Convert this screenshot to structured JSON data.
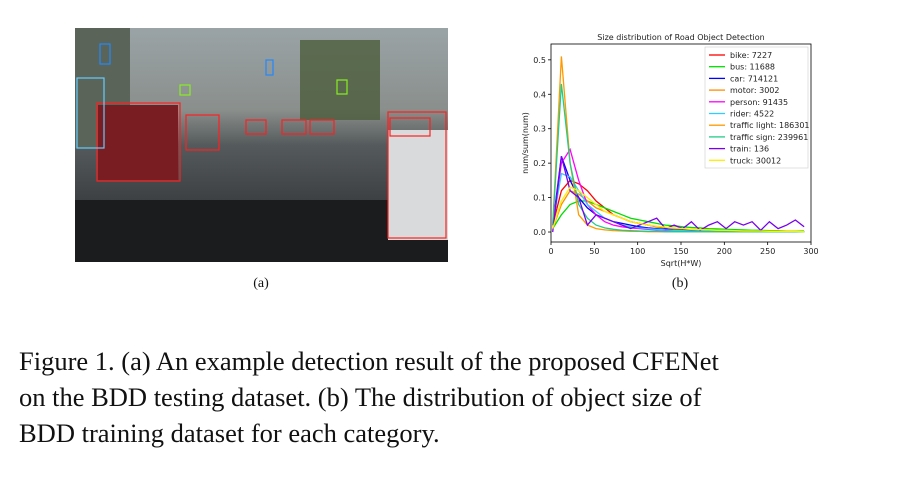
{
  "figure": {
    "panel_a_label": "(a)",
    "panel_b_label": "(b)",
    "caption": {
      "lines": [
        "Figure 1. (a) An example detection result of the proposed CFENet",
        "on the BDD testing dataset.  (b) The distribution of object size of",
        "BDD training dataset for each category."
      ]
    }
  },
  "chart_data": {
    "type": "line",
    "title": "Size distribution of Road Object Detection",
    "x_label": "Sqrt(H*W)",
    "y_label": "num/sum(num)",
    "xlim": [
      0,
      300
    ],
    "ylim": [
      -0.029,
      0.546
    ],
    "xticks": [
      0,
      50,
      100,
      150,
      200,
      250,
      300
    ],
    "yticks": [
      {
        "value": 0,
        "label": "0.0"
      },
      0.1,
      0.2,
      0.3,
      0.4,
      0.5
    ],
    "legend": "upper right",
    "x": [
      2,
      12,
      22,
      32,
      42,
      52,
      62,
      72,
      82,
      92,
      102,
      112,
      122,
      132,
      142,
      152,
      162,
      172,
      182,
      192,
      202,
      212,
      222,
      232,
      242,
      252,
      262,
      272,
      282,
      292
    ],
    "series": [
      {
        "name": "bike: 7227",
        "color": "#ff0000",
        "values": [
          0.02,
          0.12,
          0.15,
          0.14,
          0.12,
          0.09,
          0.07,
          0.05,
          0.04,
          0.03,
          0.025,
          0.02,
          0.015,
          0.012,
          0.01,
          0.008,
          0.007,
          0.006,
          0.005,
          0.004,
          0.004,
          0.003,
          0.003,
          0.002,
          0.002,
          0.002,
          0.002,
          0.001,
          0.001,
          0.001
        ]
      },
      {
        "name": "bus: 11688",
        "color": "#00dd00",
        "values": [
          0.01,
          0.05,
          0.08,
          0.09,
          0.09,
          0.08,
          0.07,
          0.06,
          0.05,
          0.04,
          0.035,
          0.03,
          0.025,
          0.02,
          0.018,
          0.015,
          0.013,
          0.012,
          0.01,
          0.009,
          0.008,
          0.007,
          0.006,
          0.005,
          0.005,
          0.004,
          0.004,
          0.003,
          0.003,
          0.003
        ]
      },
      {
        "name": "car: 714121",
        "color": "#0000ff",
        "values": [
          0.02,
          0.22,
          0.15,
          0.1,
          0.07,
          0.05,
          0.04,
          0.03,
          0.025,
          0.02,
          0.015,
          0.012,
          0.01,
          0.008,
          0.007,
          0.006,
          0.005,
          0.004,
          0.004,
          0.003,
          0.003,
          0.002,
          0.002,
          0.002,
          0.002,
          0.001,
          0.001,
          0.001,
          0.001,
          0.001
        ]
      },
      {
        "name": "motor: 3002",
        "color": "#ff8c00",
        "values": [
          0.01,
          0.08,
          0.12,
          0.11,
          0.09,
          0.07,
          0.06,
          0.05,
          0.04,
          0.03,
          0.025,
          0.02,
          0.016,
          0.013,
          0.01,
          0.009,
          0.008,
          0.007,
          0.006,
          0.005,
          0.004,
          0.004,
          0.003,
          0.003,
          0.002,
          0.002,
          0.002,
          0.002,
          0.001,
          0.001
        ]
      },
      {
        "name": "person: 91435",
        "color": "#ff00ff",
        "values": [
          0.02,
          0.2,
          0.24,
          0.15,
          0.08,
          0.05,
          0.03,
          0.02,
          0.015,
          0.012,
          0.01,
          0.008,
          0.006,
          0.005,
          0.004,
          0.003,
          0.003,
          0.002,
          0.002,
          0.002,
          0.001,
          0.001,
          0.001,
          0.001,
          0.001,
          0.001,
          0.001,
          0.001,
          0.001,
          0.001
        ]
      },
      {
        "name": "rider: 4522",
        "color": "#33ccff",
        "values": [
          0.02,
          0.17,
          0.16,
          0.12,
          0.08,
          0.06,
          0.04,
          0.03,
          0.02,
          0.015,
          0.012,
          0.01,
          0.008,
          0.006,
          0.005,
          0.004,
          0.003,
          0.003,
          0.002,
          0.002,
          0.002,
          0.001,
          0.001,
          0.001,
          0.001,
          0.001,
          0.001,
          0.001,
          0.001,
          0.001
        ]
      },
      {
        "name": "traffic light: 186301",
        "color": "#ff9900",
        "values": [
          0.02,
          0.51,
          0.2,
          0.05,
          0.02,
          0.01,
          0.006,
          0.004,
          0.003,
          0.002,
          0.002,
          0.001,
          0.001,
          0.001,
          0.001,
          0.001,
          0.001,
          0.001,
          0.001,
          0.001,
          0.001,
          0.001,
          0.001,
          0.001,
          0.001,
          0.001,
          0.001,
          0.001,
          0.001,
          0.001
        ]
      },
      {
        "name": "traffic sign: 239961",
        "color": "#22cc88",
        "values": [
          0.02,
          0.43,
          0.2,
          0.08,
          0.04,
          0.02,
          0.012,
          0.008,
          0.005,
          0.004,
          0.003,
          0.002,
          0.002,
          0.001,
          0.001,
          0.001,
          0.001,
          0.001,
          0.001,
          0.001,
          0.001,
          0.001,
          0.001,
          0.001,
          0.001,
          0.001,
          0.001,
          0.001,
          0.001,
          0.001
        ]
      },
      {
        "name": "train: 136",
        "color": "#7700ee",
        "values": [
          0.0,
          0.22,
          0.12,
          0.1,
          0.02,
          0.05,
          0.04,
          0.03,
          0.02,
          0.01,
          0.02,
          0.03,
          0.04,
          0.01,
          0.02,
          0.01,
          0.03,
          0.005,
          0.02,
          0.03,
          0.01,
          0.03,
          0.02,
          0.03,
          0.005,
          0.03,
          0.01,
          0.02,
          0.035,
          0.015
        ]
      },
      {
        "name": "truck: 30012",
        "color": "#ffee00",
        "values": [
          0.01,
          0.09,
          0.13,
          0.12,
          0.1,
          0.08,
          0.06,
          0.05,
          0.04,
          0.03,
          0.025,
          0.02,
          0.017,
          0.014,
          0.012,
          0.01,
          0.008,
          0.007,
          0.006,
          0.005,
          0.005,
          0.004,
          0.003,
          0.003,
          0.003,
          0.002,
          0.002,
          0.002,
          0.002,
          0.001
        ]
      }
    ]
  }
}
